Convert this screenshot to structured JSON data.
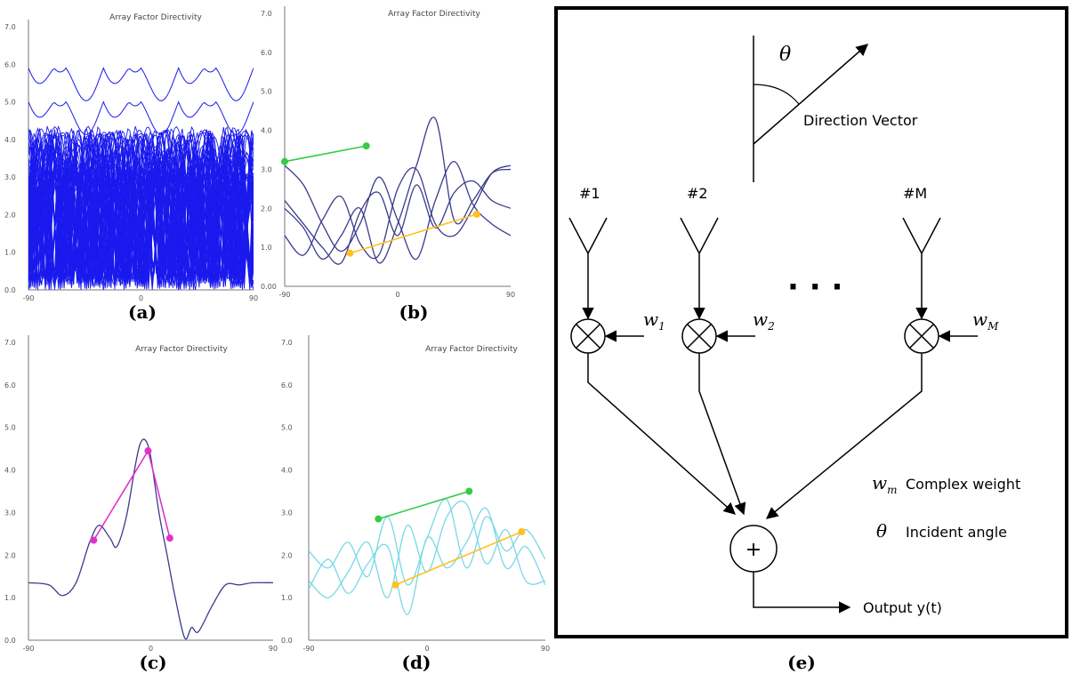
{
  "chart_data": [
    {
      "type": "line",
      "title": "Array Factor Directivity",
      "x_ticks": [
        "-90",
        "0",
        "90"
      ],
      "y_ticks": [
        "0.0",
        "1.0",
        "2.0",
        "3.0",
        "4.0",
        "5.0",
        "6.0",
        "7.0"
      ],
      "xlim": [
        -90,
        90
      ],
      "ylim": [
        0,
        7
      ],
      "caption": "(a)",
      "color": "#1a1aee",
      "n_curves": 60
    },
    {
      "type": "line",
      "title": "Array Factor Directivity",
      "x_ticks": [
        "-90",
        "0",
        "90"
      ],
      "y_ticks": [
        "0.00",
        "1.0",
        "2.0",
        "3.0",
        "4.0",
        "5.0",
        "6.0",
        "7.0"
      ],
      "xlim": [
        -90,
        90
      ],
      "ylim": [
        0,
        7
      ],
      "caption": "(b)",
      "color": "#3a3a8c",
      "series": [
        {
          "x": [
            -90,
            -75,
            -60,
            -45,
            -30,
            -15,
            0,
            15,
            30,
            45,
            60,
            75,
            90
          ],
          "y": [
            3.1,
            2.6,
            1.6,
            0.9,
            1.6,
            2.8,
            1.7,
            0.7,
            2.2,
            3.2,
            2.1,
            1.6,
            1.3
          ]
        },
        {
          "x": [
            -90,
            -75,
            -60,
            -45,
            -30,
            -15,
            0,
            15,
            30,
            45,
            60,
            75,
            90
          ],
          "y": [
            2.2,
            1.6,
            1.0,
            0.6,
            1.9,
            2.4,
            1.3,
            2.6,
            1.5,
            2.4,
            2.7,
            2.2,
            2.0
          ]
        },
        {
          "x": [
            -90,
            -75,
            -60,
            -45,
            -30,
            -15,
            0,
            15,
            30,
            45,
            60,
            75,
            90
          ],
          "y": [
            1.3,
            0.8,
            1.7,
            2.3,
            1.1,
            0.8,
            2.5,
            3.0,
            1.6,
            1.3,
            2.0,
            2.9,
            3.1
          ]
        },
        {
          "x": [
            -90,
            -75,
            -60,
            -45,
            -30,
            -15,
            0,
            15,
            30,
            45,
            60,
            75,
            90
          ],
          "y": [
            2.0,
            1.5,
            0.7,
            1.3,
            2.0,
            0.6,
            1.6,
            3.1,
            4.3,
            1.7,
            2.2,
            2.9,
            3.0
          ]
        }
      ],
      "segments": [
        {
          "color": "#33cc44",
          "points": [
            [
              -90,
              3.2
            ],
            [
              -25,
              3.6
            ]
          ]
        },
        {
          "color": "#ffc020",
          "points": [
            [
              -38,
              0.85
            ],
            [
              63,
              1.85
            ]
          ]
        }
      ]
    },
    {
      "type": "line",
      "title": "Array Factor Directivity",
      "x_ticks": [
        "-90",
        "0",
        "90"
      ],
      "y_ticks": [
        "0.0",
        "1.0",
        "2.0",
        "3.0",
        "4.0",
        "5.0",
        "6.0",
        "7.0"
      ],
      "xlim": [
        -90,
        90
      ],
      "ylim": [
        0,
        7
      ],
      "caption": "(c)",
      "color": "#3a3a8c",
      "series": [
        {
          "x": [
            -90,
            -75,
            -65,
            -55,
            -45,
            -38,
            -30,
            -25,
            -18,
            -12,
            -8,
            -4,
            0,
            6,
            12,
            18,
            25,
            30,
            35,
            45,
            55,
            65,
            75,
            90
          ],
          "y": [
            1.35,
            1.3,
            1.05,
            1.35,
            2.3,
            2.7,
            2.4,
            2.2,
            2.9,
            4.0,
            4.6,
            4.7,
            4.3,
            3.0,
            2.0,
            1.0,
            0.05,
            0.3,
            0.2,
            0.8,
            1.3,
            1.3,
            1.35,
            1.35
          ]
        }
      ],
      "segments": [
        {
          "color": "#dd33cc",
          "points": [
            [
              -42,
              2.35
            ],
            [
              -2,
              4.45
            ],
            [
              14,
              2.4
            ]
          ]
        }
      ]
    },
    {
      "type": "line",
      "title": "Array Factor Directivity",
      "x_ticks": [
        "-90",
        "0",
        "90"
      ],
      "y_ticks": [
        "0.0",
        "1.0",
        "2.0",
        "3.0",
        "4.0",
        "5.0",
        "6.0",
        "7.0"
      ],
      "xlim": [
        -90,
        90
      ],
      "ylim": [
        0,
        7
      ],
      "caption": "(d)",
      "color": "#78d8e8",
      "series": [
        {
          "x": [
            -90,
            -75,
            -60,
            -45,
            -30,
            -15,
            0,
            15,
            30,
            45,
            60,
            75,
            90
          ],
          "y": [
            2.1,
            1.7,
            2.3,
            1.5,
            2.9,
            1.3,
            2.4,
            3.3,
            1.7,
            2.9,
            2.1,
            2.6,
            1.9
          ]
        },
        {
          "x": [
            -90,
            -75,
            -60,
            -45,
            -30,
            -15,
            0,
            15,
            30,
            45,
            60,
            75,
            90
          ],
          "y": [
            1.4,
            1.0,
            1.6,
            2.3,
            1.0,
            2.7,
            1.6,
            2.9,
            3.2,
            1.8,
            2.6,
            1.4,
            1.4
          ]
        },
        {
          "x": [
            -90,
            -75,
            -60,
            -45,
            -30,
            -15,
            0,
            15,
            30,
            45,
            60,
            75,
            90
          ],
          "y": [
            1.2,
            1.9,
            1.1,
            1.8,
            2.2,
            0.6,
            2.4,
            1.7,
            2.3,
            3.1,
            1.7,
            2.2,
            1.3
          ]
        }
      ],
      "segments": [
        {
          "color": "#33cc44",
          "points": [
            [
              -37,
              2.85
            ],
            [
              32,
              3.5
            ]
          ]
        },
        {
          "color": "#ffc020",
          "points": [
            [
              -24,
              1.3
            ],
            [
              72,
              2.55
            ]
          ]
        }
      ]
    }
  ],
  "diagram": {
    "caption": "(e)",
    "theta": "θ",
    "direction_vector": "Direction Vector",
    "antennas": [
      {
        "label": "#1",
        "weight": "w",
        "sub": "1"
      },
      {
        "label": "#2",
        "weight": "w",
        "sub": "2"
      },
      {
        "label": "#M",
        "weight": "w",
        "sub": "M"
      }
    ],
    "dots": "·   ·   ·",
    "legend_w": "w",
    "legend_w_sub": "m",
    "legend_w_text": "Complex weight",
    "legend_theta": "θ",
    "legend_theta_text": "Incident angle",
    "sum_symbol": "+",
    "output": "Output y(t)"
  }
}
